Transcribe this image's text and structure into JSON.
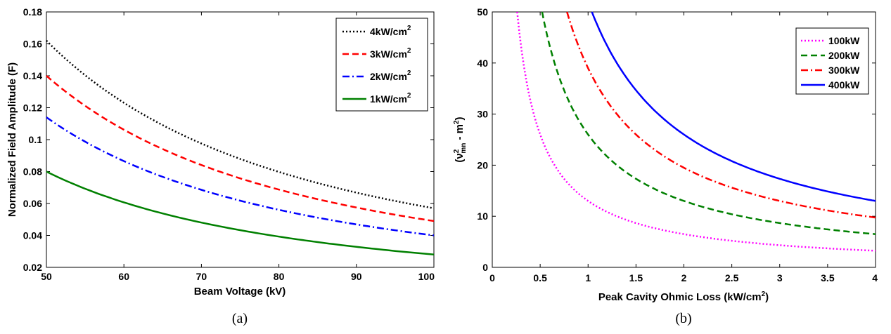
{
  "chart_data": [
    {
      "type": "line",
      "caption": "(a)",
      "xlabel": "Beam Voltage (kV)",
      "ylabel": "Normalized Field Amplitude (F)",
      "xlim": [
        50,
        100
      ],
      "ylim": [
        0.02,
        0.18
      ],
      "xticks": [
        "50",
        "60",
        "70",
        "80",
        "90",
        "100"
      ],
      "yticks": [
        "0.02",
        "0.04",
        "0.06",
        "0.08",
        "0.1",
        "0.12",
        "0.14",
        "0.16",
        "0.18"
      ],
      "legend_position": "top-right",
      "x": [
        50,
        55,
        60,
        65,
        70,
        75,
        80,
        85,
        90,
        95,
        100
      ],
      "series": [
        {
          "name": "4kW/cm",
          "sup": "2",
          "color": "#000000",
          "dash": "2,3",
          "values": [
            0.162,
            0.141,
            0.124,
            0.109,
            0.097,
            0.087,
            0.079,
            0.072,
            0.066,
            0.061,
            0.057
          ]
        },
        {
          "name": "3kW/cm",
          "sup": "2",
          "color": "#ff0000",
          "dash": "9,5",
          "values": [
            0.14,
            0.122,
            0.107,
            0.094,
            0.084,
            0.076,
            0.069,
            0.063,
            0.058,
            0.053,
            0.049
          ]
        },
        {
          "name": "2kW/cm",
          "sup": "2",
          "color": "#0000ff",
          "dash": "10,4,2,4",
          "values": [
            0.114,
            0.099,
            0.087,
            0.077,
            0.069,
            0.062,
            0.056,
            0.051,
            0.047,
            0.043,
            0.04
          ]
        },
        {
          "name": "1kW/cm",
          "sup": "2",
          "color": "#008000",
          "dash": "",
          "values": [
            0.08,
            0.069,
            0.061,
            0.054,
            0.048,
            0.043,
            0.039,
            0.036,
            0.033,
            0.03,
            0.028
          ]
        }
      ]
    },
    {
      "type": "line",
      "caption": "(b)",
      "xlabel": "Peak Cavity Ohmic Loss (kW/cm",
      "xlabel_sup": "2",
      "xlabel_end": ")",
      "ylabel": "(ν",
      "ylabel_sup": "2",
      "ylabel_sub": "mn",
      "ylabel_mid": " - m",
      "ylabel_sup2": "2",
      "ylabel_end": ")",
      "xlim": [
        0,
        4
      ],
      "ylim": [
        0,
        50
      ],
      "xticks": [
        "0",
        "0.5",
        "1",
        "1.5",
        "2",
        "2.5",
        "3",
        "3.5",
        "4"
      ],
      "yticks": [
        "0",
        "10",
        "20",
        "30",
        "40",
        "50"
      ],
      "legend_position": "top-right",
      "series": [
        {
          "name": "100kW",
          "color": "#ff00ff",
          "dash": "2,3",
          "k": 13.0
        },
        {
          "name": "200kW",
          "color": "#008000",
          "dash": "9,5",
          "k": 26.0
        },
        {
          "name": "300kW",
          "color": "#ff0000",
          "dash": "10,4,2,4",
          "k": 39.0
        },
        {
          "name": "400kW",
          "color": "#0000ff",
          "dash": "",
          "k": 52.0
        }
      ]
    }
  ]
}
